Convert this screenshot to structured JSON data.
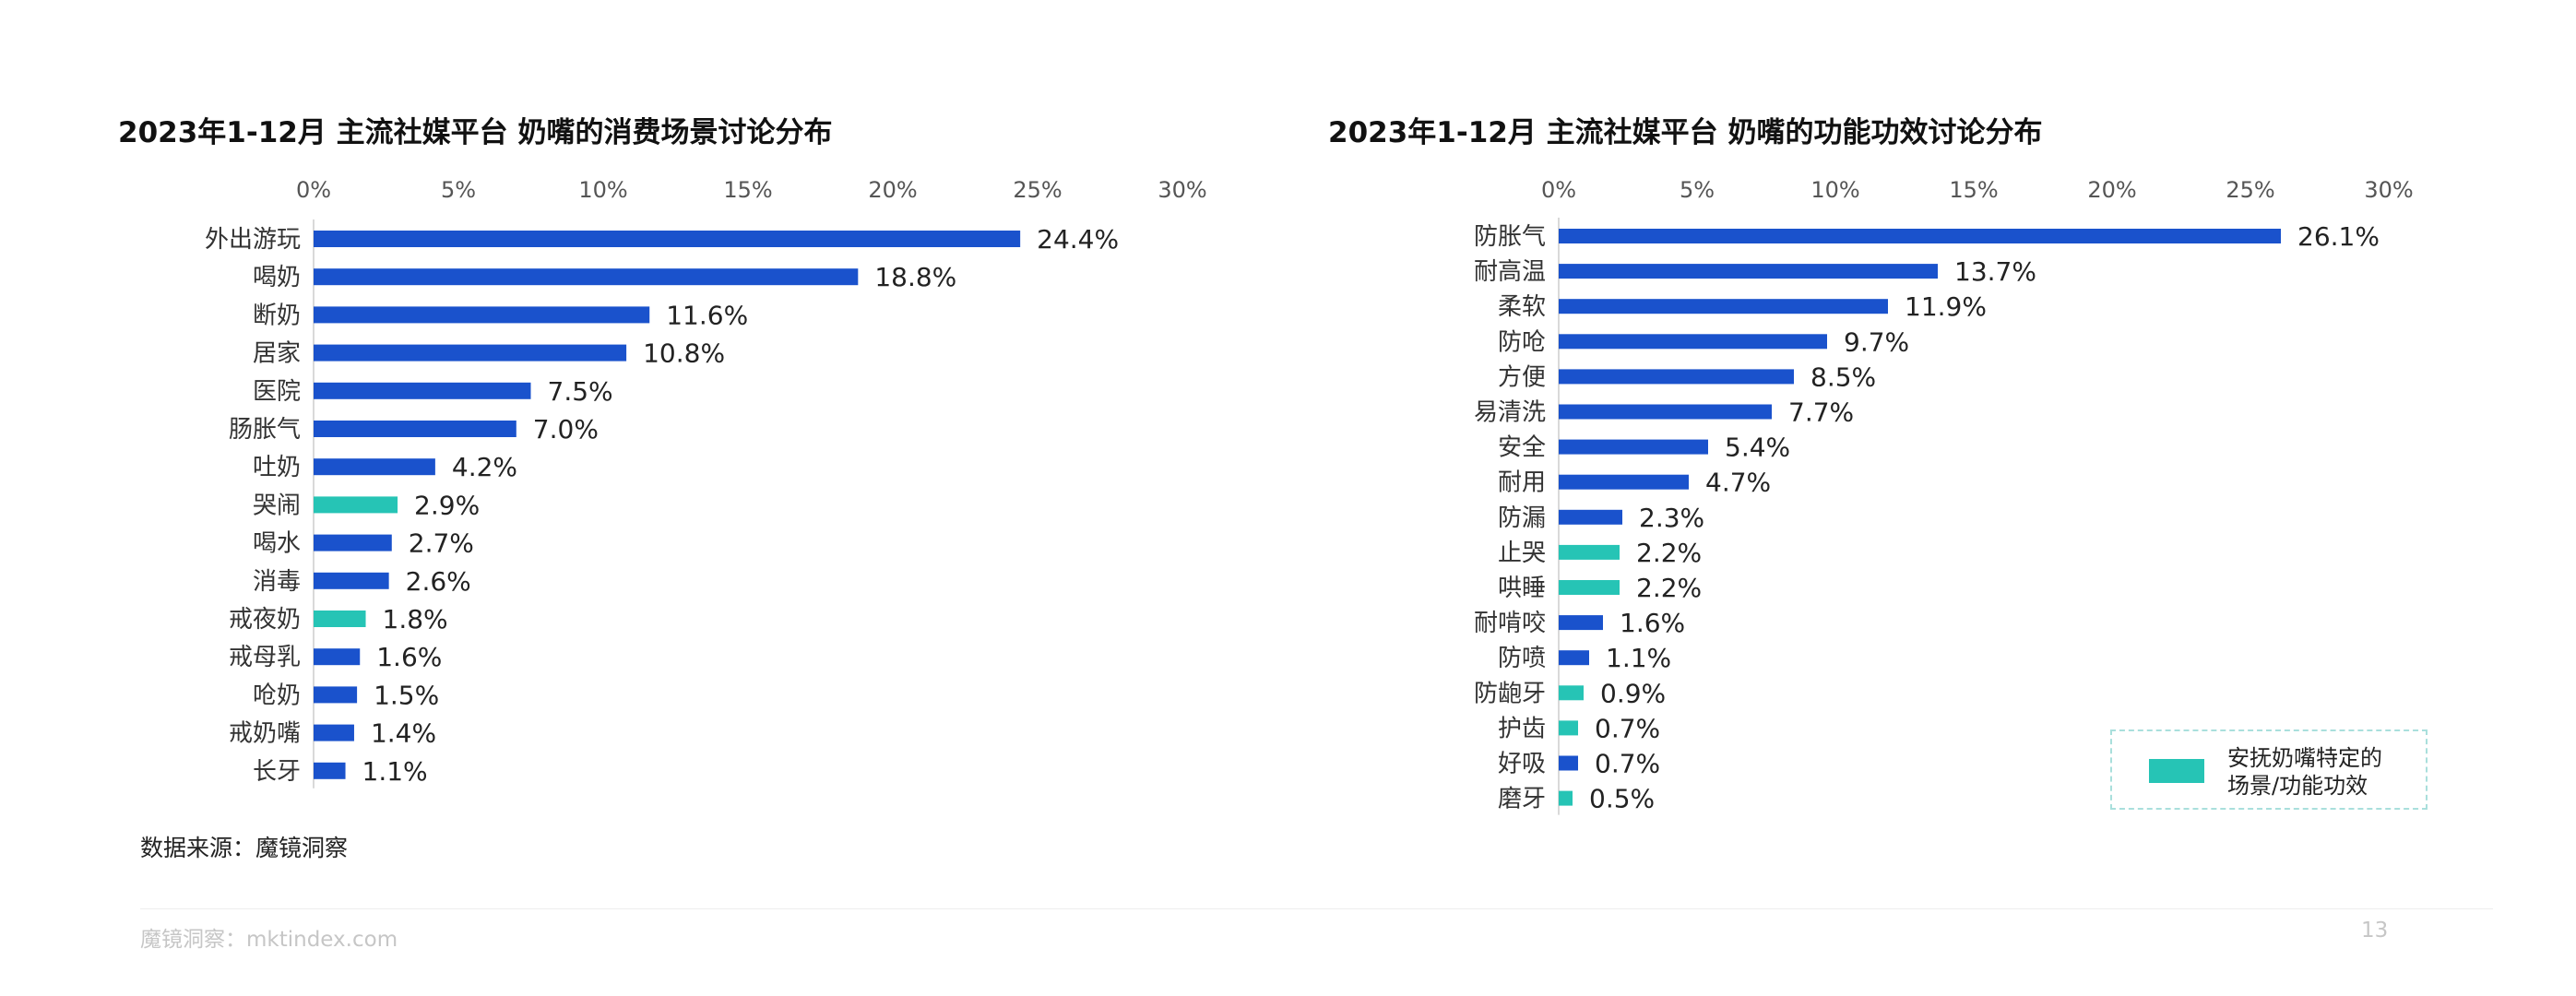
{
  "colors": {
    "main": "#1a52cc",
    "highlight": "#26c4b5"
  },
  "chart_data": [
    {
      "type": "bar",
      "orientation": "horizontal",
      "title": "2023年1-12月 主流社媒平台 奶嘴的消费场景讨论分布",
      "ticks": [
        "0%",
        "5%",
        "10%",
        "15%",
        "20%",
        "25%",
        "30%"
      ],
      "xlim": [
        0,
        30
      ],
      "grid": false,
      "categories": [
        "外出游玩",
        "喝奶",
        "断奶",
        "居家",
        "医院",
        "肠胀气",
        "吐奶",
        "哭闹",
        "喝水",
        "消毒",
        "戒夜奶",
        "戒母乳",
        "呛奶",
        "戒奶嘴",
        "长牙"
      ],
      "values": [
        24.4,
        18.8,
        11.6,
        10.8,
        7.5,
        7.0,
        4.2,
        2.9,
        2.7,
        2.6,
        1.8,
        1.6,
        1.5,
        1.4,
        1.1
      ],
      "labels": [
        "24.4%",
        "18.8%",
        "11.6%",
        "10.8%",
        "7.5%",
        "7.0%",
        "4.2%",
        "2.9%",
        "2.7%",
        "2.6%",
        "1.8%",
        "1.6%",
        "1.5%",
        "1.4%",
        "1.1%"
      ],
      "highlight": [
        false,
        false,
        false,
        false,
        false,
        false,
        false,
        true,
        false,
        false,
        true,
        false,
        false,
        false,
        false
      ]
    },
    {
      "type": "bar",
      "orientation": "horizontal",
      "title": "2023年1-12月 主流社媒平台 奶嘴的功能功效讨论分布",
      "ticks": [
        "0%",
        "5%",
        "10%",
        "15%",
        "20%",
        "25%",
        "30%"
      ],
      "xlim": [
        0,
        30
      ],
      "grid": false,
      "categories": [
        "防胀气",
        "耐高温",
        "柔软",
        "防呛",
        "方便",
        "易清洗",
        "安全",
        "耐用",
        "防漏",
        "止哭",
        "哄睡",
        "耐啃咬",
        "防喷",
        "防龅牙",
        "护齿",
        "好吸",
        "磨牙"
      ],
      "values": [
        26.1,
        13.7,
        11.9,
        9.7,
        8.5,
        7.7,
        5.4,
        4.7,
        2.3,
        2.2,
        2.2,
        1.6,
        1.1,
        0.9,
        0.7,
        0.7,
        0.5
      ],
      "labels": [
        "26.1%",
        "13.7%",
        "11.9%",
        "9.7%",
        "8.5%",
        "7.7%",
        "5.4%",
        "4.7%",
        "2.3%",
        "2.2%",
        "2.2%",
        "1.6%",
        "1.1%",
        "0.9%",
        "0.7%",
        "0.7%",
        "0.5%"
      ],
      "highlight": [
        false,
        false,
        false,
        false,
        false,
        false,
        false,
        false,
        false,
        true,
        true,
        false,
        false,
        true,
        true,
        false,
        true
      ]
    }
  ],
  "legend": {
    "label_line1": "安抚奶嘴特定的",
    "label_line2": "场景/功能功效"
  },
  "source": "数据来源：魔镜洞察",
  "footer": {
    "left": "魔镜洞察：mktindex.com",
    "page_number": "13"
  }
}
